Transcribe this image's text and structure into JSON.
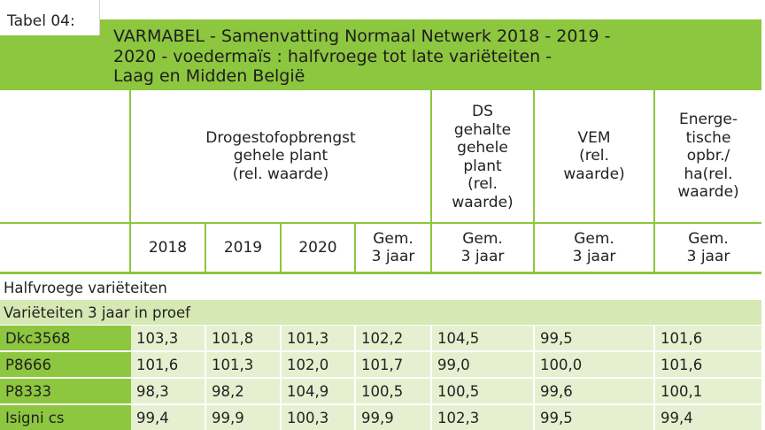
{
  "table_label": "Tabel 04:",
  "title_lines": [
    "VARMABEL - Samenvatting Normaal Netwerk 2018 - 2019 -",
    "2020 - voedermaïs : halfvroege tot late variëteiten -",
    "Laag en Midden België"
  ],
  "headers": {
    "yield": [
      "Drogestofopbrengst",
      "gehele plant",
      "(rel. waarde)"
    ],
    "ds": [
      "DS",
      "gehalte",
      "gehele",
      "plant",
      "(rel.",
      "waarde)"
    ],
    "vem": [
      "VEM",
      "(rel.",
      "waarde)"
    ],
    "energy": [
      "Energe-",
      "tische",
      "opbr./",
      "ha(rel.",
      "waarde)"
    ]
  },
  "subheaders": [
    [
      "2018"
    ],
    [
      "2019"
    ],
    [
      "2020"
    ],
    [
      "Gem.",
      "3 jaar"
    ],
    [
      "Gem.",
      "3 jaar"
    ],
    [
      "Gem.",
      "3 jaar"
    ],
    [
      "Gem.",
      "3 jaar"
    ]
  ],
  "section_title": "Halfvroege variëteiten",
  "subsection_title": "Variëteiten 3 jaar in proef",
  "rows": [
    {
      "name": "Dkc3568",
      "values": [
        "103,3",
        "101,8",
        "101,3",
        "102,2",
        "104,5",
        "99,5",
        "101,6"
      ]
    },
    {
      "name": "P8666",
      "values": [
        "101,6",
        "101,3",
        "102,0",
        "101,7",
        "99,0",
        "100,0",
        "101,6"
      ]
    },
    {
      "name": "P8333",
      "values": [
        "98,3",
        "98,2",
        "104,9",
        "100,5",
        "100,5",
        "99,6",
        "100,1"
      ]
    },
    {
      "name": "Isigni cs",
      "values": [
        "99,4",
        "99,9",
        "100,3",
        "99,9",
        "102,3",
        "99,5",
        "99,4"
      ]
    }
  ]
}
